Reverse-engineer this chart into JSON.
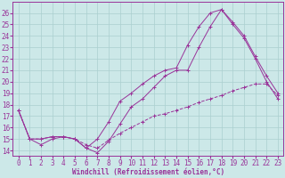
{
  "xlabel": "Windchill (Refroidissement éolien,°C)",
  "xlim": [
    -0.5,
    23.5
  ],
  "ylim": [
    13.5,
    27.0
  ],
  "yticks": [
    14,
    15,
    16,
    17,
    18,
    19,
    20,
    21,
    22,
    23,
    24,
    25,
    26
  ],
  "xticks": [
    0,
    1,
    2,
    3,
    4,
    5,
    6,
    7,
    8,
    9,
    10,
    11,
    12,
    13,
    14,
    15,
    16,
    17,
    18,
    19,
    20,
    21,
    22,
    23
  ],
  "line_color": "#993399",
  "bg_color": "#cce8e8",
  "grid_color": "#aacfcf",
  "line1_x": [
    0,
    1,
    2,
    3,
    4,
    5,
    6,
    7,
    8,
    9,
    10,
    11,
    12,
    13,
    14,
    15,
    16,
    17,
    18,
    19,
    20,
    21,
    22,
    23
  ],
  "line1_y": [
    17.5,
    15.0,
    14.5,
    15.0,
    15.2,
    15.0,
    14.2,
    13.8,
    14.8,
    16.3,
    17.8,
    18.5,
    19.5,
    20.5,
    21.0,
    21.0,
    23.0,
    24.8,
    26.3,
    25.0,
    23.8,
    22.0,
    20.0,
    18.5
  ],
  "line2_x": [
    0,
    1,
    2,
    3,
    4,
    5,
    6,
    7,
    8,
    9,
    10,
    11,
    12,
    13,
    14,
    15,
    16,
    17,
    18,
    19,
    20,
    21,
    22,
    23
  ],
  "line2_y": [
    17.5,
    15.0,
    15.0,
    15.2,
    15.2,
    15.0,
    14.2,
    15.0,
    16.5,
    18.3,
    19.0,
    19.8,
    20.5,
    21.0,
    21.2,
    23.2,
    24.8,
    26.0,
    26.3,
    25.2,
    24.0,
    22.2,
    20.5,
    19.0
  ],
  "line3_x": [
    0,
    1,
    2,
    3,
    4,
    5,
    6,
    7,
    8,
    9,
    10,
    11,
    12,
    13,
    14,
    15,
    16,
    17,
    18,
    19,
    20,
    21,
    22,
    23
  ],
  "line3_y": [
    17.5,
    15.0,
    15.0,
    15.2,
    15.2,
    15.0,
    14.5,
    14.2,
    14.9,
    15.5,
    16.0,
    16.5,
    17.0,
    17.2,
    17.5,
    17.8,
    18.2,
    18.5,
    18.8,
    19.2,
    19.5,
    19.8,
    19.8,
    18.8
  ]
}
